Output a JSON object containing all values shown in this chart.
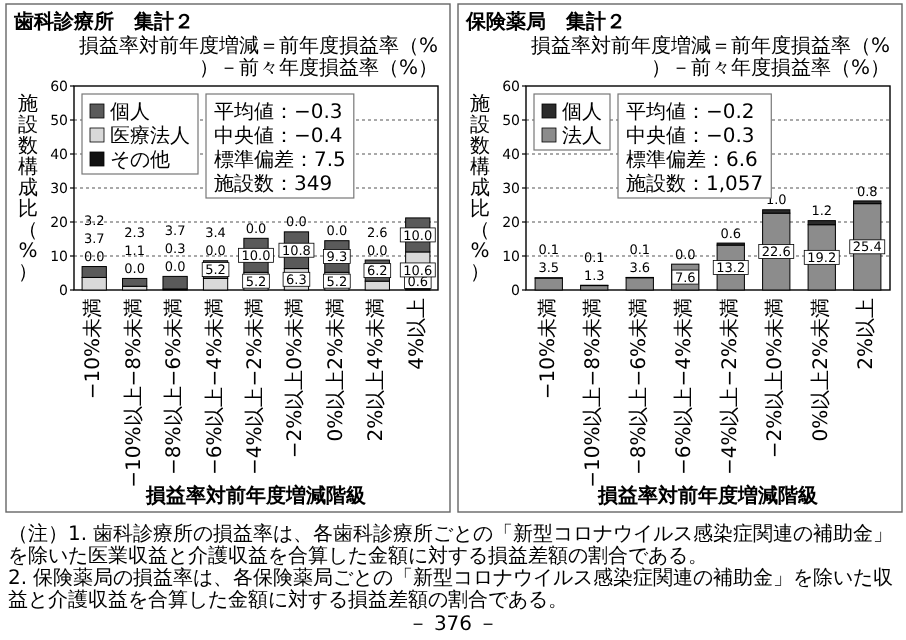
{
  "chart_data": [
    {
      "type": "bar",
      "stacked": true,
      "title": "歯科診療所　集計２",
      "subtitle": "損益率対前年度増減＝前年度損益率（%）－前々年度損益率（%）",
      "xlabel": "損益率対前年度増減階級",
      "ylabel": "施設数構成比（%）",
      "categories": [
        "−10%未満",
        "−10%以上−8%未満",
        "−8%以上−6%未満",
        "−6%以上−4%未満",
        "−4%以上−2%未満",
        "−2%以上0%未満",
        "0%以上2%未満",
        "2%以上4%未満",
        "4%以上"
      ],
      "series": [
        {
          "name": "その他",
          "color": "#111111",
          "values": [
            0.0,
            0.0,
            0.0,
            0.0,
            0.0,
            0.0,
            0.0,
            0.0,
            0.6
          ],
          "value_labels": [
            "0.0",
            "0.0",
            "0.0",
            "0.0",
            "0.0",
            "0.0",
            "0.0",
            "0.0",
            "0.6"
          ]
        },
        {
          "name": "医療法人",
          "color": "#d9d9d9",
          "values": [
            3.7,
            1.1,
            0.3,
            3.4,
            5.2,
            6.3,
            5.2,
            2.6,
            10.6
          ],
          "value_labels": [
            "3.7",
            "1.1",
            "0.3",
            "3.4",
            "5.2",
            "6.3",
            "5.2",
            "2.6",
            "10.6"
          ]
        },
        {
          "name": "個人",
          "color": "#5a5a5a",
          "values": [
            3.2,
            2.3,
            3.7,
            5.2,
            10.0,
            10.8,
            9.3,
            6.2,
            10.0
          ],
          "value_labels": [
            "3.2",
            "2.3",
            "3.7",
            "5.2",
            "10.0",
            "10.8",
            "9.3",
            "6.2",
            "10.0"
          ]
        }
      ],
      "ylim": [
        0,
        60
      ],
      "yticks": [
        0,
        10,
        20,
        30,
        40,
        50,
        60
      ],
      "grid": "y",
      "legend": "top left",
      "annotations": [
        "平均値：−0.3",
        "中央値：−0.4",
        "標準偏差：7.5",
        "施設数：349"
      ]
    },
    {
      "type": "bar",
      "stacked": true,
      "title": "保険薬局　集計２",
      "subtitle": "損益率対前年度増減＝前年度損益率（%）－前々年度損益率（%）",
      "xlabel": "損益率対前年度増減階級",
      "ylabel": "施設数構成比（%）",
      "categories": [
        "−10%未満",
        "−10%以上−8%未満",
        "−8%以上−6%未満",
        "−6%以上−4%未満",
        "−4%以上−2%未満",
        "−2%以上0%未満",
        "0%以上2%未満",
        "2%以上"
      ],
      "series": [
        {
          "name": "法人",
          "color": "#8c8c8c",
          "values": [
            3.5,
            1.3,
            3.6,
            7.6,
            13.2,
            22.6,
            19.2,
            25.4
          ],
          "value_labels": [
            "3.5",
            "1.3",
            "3.6",
            "7.6",
            "13.2",
            "22.6",
            "19.2",
            "25.4"
          ]
        },
        {
          "name": "個人",
          "color": "#2b2b2b",
          "values": [
            0.1,
            0.1,
            0.1,
            0.0,
            0.6,
            1.0,
            1.2,
            0.8
          ],
          "value_labels": [
            "0.1",
            "0.1",
            "0.1",
            "0.0",
            "0.6",
            "1.0",
            "1.2",
            "0.8"
          ]
        }
      ],
      "ylim": [
        0,
        60
      ],
      "yticks": [
        0,
        10,
        20,
        30,
        40,
        50,
        60
      ],
      "grid": "y",
      "legend": "top left",
      "annotations": [
        "平均値：−0.2",
        "中央値：−0.3",
        "標準偏差：6.6",
        "施設数：1,057"
      ]
    },
    {
      "type": "other",
      "annotations": [
        "（注）1. 歯科診療所の損益率は、各歯科診療所ごとの「新型コロナウイルス感染症関連の補助金」を除いた医業収益と介護収益を合算した金額に対する損益差額の割合である。",
        "2. 保険薬局の損益率は、各保険薬局ごとの「新型コロナウイルス感染症関連の補助金」を除いた収益と介護収益を合算した金額に対する損益差額の割合である。",
        "－ 376 －"
      ]
    }
  ]
}
